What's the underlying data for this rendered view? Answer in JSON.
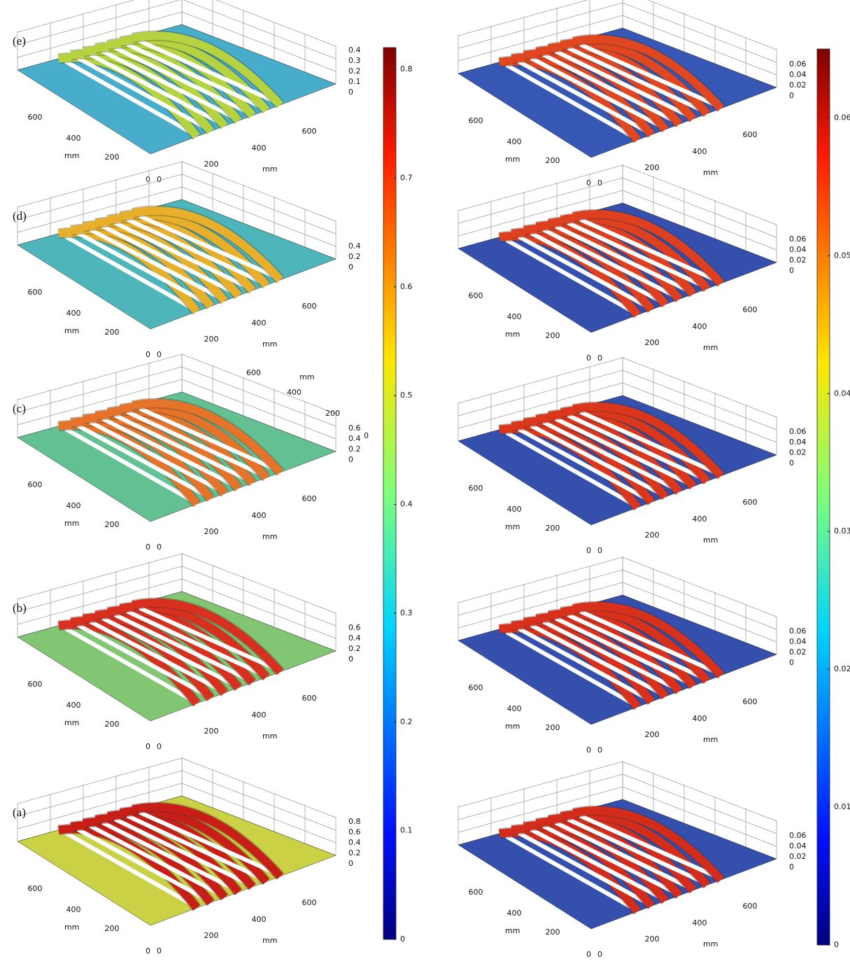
{
  "axes": {
    "x_ticks": [
      "200",
      "400",
      "600"
    ],
    "y_ticks": [
      "600",
      "400",
      "200"
    ],
    "origin": [
      "0",
      "0"
    ],
    "unit": "mm"
  },
  "left_panels": [
    {
      "label": "(e)",
      "zticks": [
        "0.4",
        "0.3",
        "0.2",
        "0.1",
        "0"
      ],
      "plate": "#3fa9c9",
      "rib": "#b5d33f"
    },
    {
      "label": "(d)",
      "zticks": [
        "0.4",
        "0.2",
        "0"
      ],
      "plate": "#45b3b8",
      "rib": "#e8b02a"
    },
    {
      "label": "(c)",
      "zticks": [
        "0.6",
        "0.4",
        "0.2",
        "0"
      ],
      "top_ticks": [
        "600",
        "400",
        "200",
        "0"
      ],
      "plate": "#5bbd8e",
      "rib": "#e5742a"
    },
    {
      "label": "(b)",
      "zticks": [
        "0.6",
        "0.4",
        "0.2",
        "0"
      ],
      "plate": "#7cc36c",
      "rib": "#d8301f"
    },
    {
      "label": "(a)",
      "zticks": [
        "0.8",
        "0.6",
        "0.4",
        "0.2",
        "0"
      ],
      "plate": "#c8cf3c",
      "rib": "#c81e18"
    }
  ],
  "right_panels": [
    {
      "zticks": [
        "0.06",
        "0.04",
        "0.02",
        "0"
      ],
      "plate": "#2d4fb0",
      "rib": "#e0461f"
    },
    {
      "zticks": [
        "0.06",
        "0.04",
        "0.02",
        "0"
      ],
      "plate": "#2a46a8",
      "rib": "#de3f1e"
    },
    {
      "zticks": [
        "0.06",
        "0.04",
        "0.02",
        "0"
      ],
      "plate": "#2a46a8",
      "rib": "#d9361c"
    },
    {
      "zticks": [
        "0.06",
        "0.04",
        "0.02",
        "0"
      ],
      "plate": "#2a46a8",
      "rib": "#d8301b"
    },
    {
      "zticks": [
        "0.06",
        "0.04",
        "0.02",
        "0"
      ],
      "plate": "#2a46a8",
      "rib": "#d42c1a"
    }
  ],
  "colorbars": [
    {
      "lim": [
        0,
        0.82
      ],
      "ticks": [
        0,
        0.1,
        0.2,
        0.3,
        0.4,
        0.5,
        0.6,
        0.7,
        0.8
      ]
    },
    {
      "lim": [
        0,
        0.065
      ],
      "ticks": [
        0,
        0.01,
        0.02,
        0.03,
        0.04,
        0.05,
        0.06
      ]
    }
  ]
}
